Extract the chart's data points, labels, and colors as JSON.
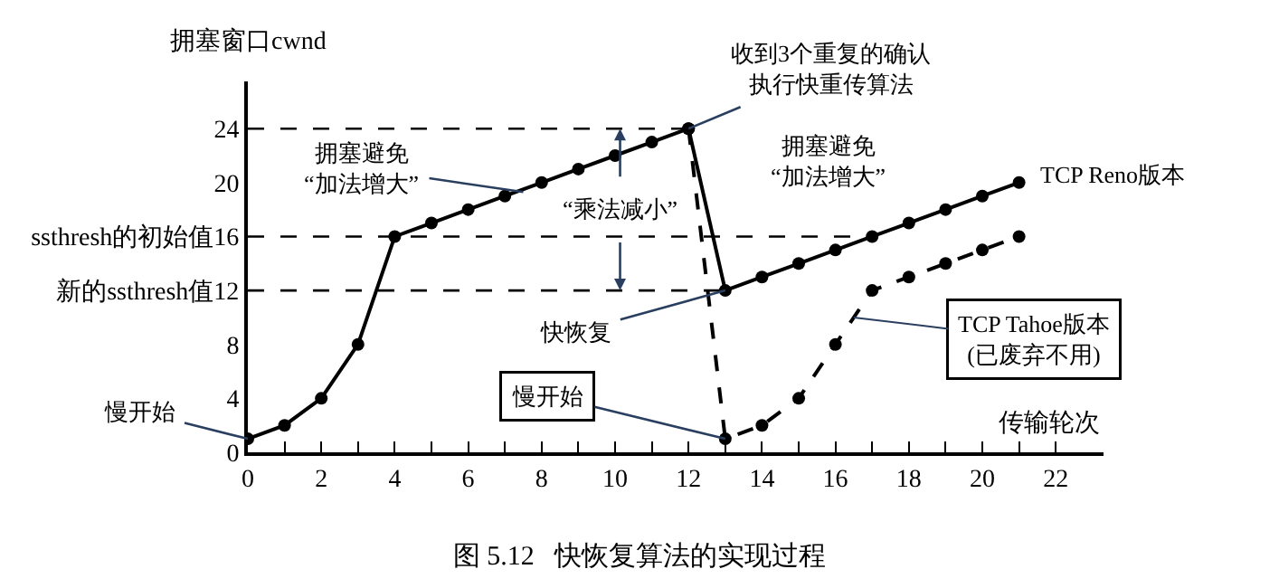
{
  "chart_data": {
    "type": "line",
    "title": "图 5.12   快恢复算法的实现过程",
    "xlabel": "传输轮次",
    "ylabel": "拥塞窗口cwnd",
    "x": [
      0,
      1,
      2,
      3,
      4,
      5,
      6,
      7,
      8,
      9,
      10,
      11,
      12,
      13,
      14,
      15,
      16,
      17,
      18,
      19,
      20,
      21
    ],
    "series": [
      {
        "name": "TCP Reno版本",
        "color": "#000000",
        "line_style": "solid",
        "values": [
          1,
          2,
          4,
          8,
          16,
          17,
          18,
          19,
          20,
          21,
          22,
          23,
          24,
          12,
          13,
          14,
          15,
          16,
          17,
          18,
          19,
          20
        ]
      },
      {
        "name": "TCP Tahoe版本\n(已废弃不用)",
        "color": "#000000",
        "line_style": "dashed",
        "x": [
          12,
          13,
          14,
          15,
          16,
          17,
          18,
          19,
          20,
          21
        ],
        "values": [
          24,
          1,
          2,
          4,
          8,
          12,
          13,
          14,
          15,
          16
        ]
      }
    ],
    "xlim": [
      0,
      23.3
    ],
    "ylim": [
      0,
      27.5
    ],
    "xticks": [
      0,
      {
        "value": 1,
        "label": null
      },
      2,
      {
        "value": 3,
        "label": null
      },
      4,
      {
        "value": 5,
        "label": null
      },
      6,
      {
        "value": 7,
        "label": null
      },
      8,
      {
        "value": 9,
        "label": null
      },
      10,
      {
        "value": 11,
        "label": null
      },
      12,
      {
        "value": 13,
        "label": null
      },
      14,
      {
        "value": 15,
        "label": null
      },
      16,
      {
        "value": 17,
        "label": null
      },
      18,
      {
        "value": 19,
        "label": null
      },
      20,
      {
        "value": 21,
        "label": null
      },
      22
    ],
    "yticks": [
      0,
      4,
      8,
      {
        "value": 12,
        "label": "新的ssthresh值12"
      },
      {
        "value": 16,
        "label": "ssthresh的初始值16"
      },
      20,
      24
    ],
    "ref_lines": [
      {
        "axis": "y",
        "value": 24,
        "line_style": "dashed",
        "color": "#000000"
      },
      {
        "axis": "y",
        "value": 16,
        "line_style": "dashed",
        "color": "#000000"
      },
      {
        "axis": "y",
        "value": 12,
        "line_style": "dashed",
        "color": "#000000"
      }
    ],
    "annotations": [
      {
        "text": "慢开始",
        "x": 0,
        "y": 1
      },
      {
        "text": "拥塞避免“加法增大”",
        "x": 7.5,
        "y": 19.3
      },
      {
        "text": "“乘法减小”",
        "x": 12.5,
        "y": 18
      },
      {
        "text": "收到3个重复的确认执行快重传算法",
        "x": 12,
        "y": 24
      },
      "拥塞避免“加法增大”",
      {
        "text": "快恢复",
        "x": 13,
        "y": 12
      },
      {
        "text": "慢开始",
        "x": 13,
        "y": 1
      }
    ],
    "marker": "circle",
    "legend": false,
    "grid": false
  }
}
